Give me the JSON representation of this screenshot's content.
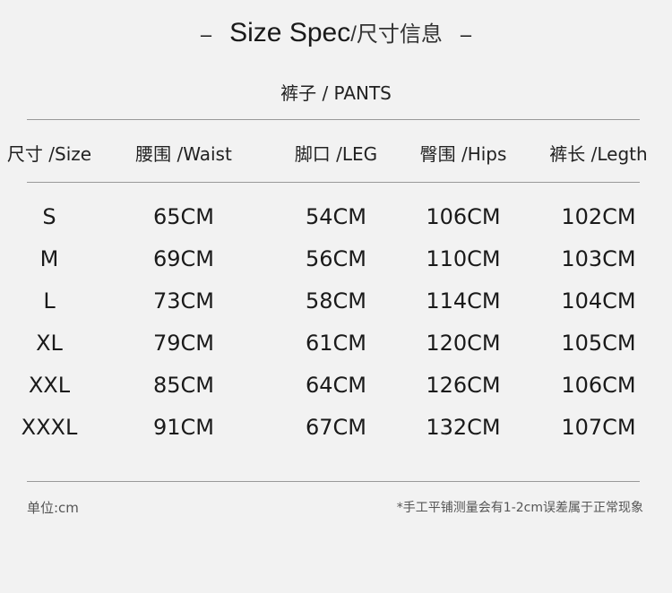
{
  "title": {
    "english": "Size Spec",
    "chinese": "/尺寸信息",
    "dash": "–"
  },
  "subtitle": "裤子 / PANTS",
  "table": {
    "headers": [
      "尺寸 /Size",
      "腰围 /Waist",
      "脚口 /LEG",
      "臀围 /Hips",
      "裤长 /Legth"
    ],
    "rows": [
      [
        "S",
        "65CM",
        "54CM",
        "106CM",
        "102CM"
      ],
      [
        "M",
        "69CM",
        "56CM",
        "110CM",
        "103CM"
      ],
      [
        "L",
        "73CM",
        "58CM",
        "114CM",
        "104CM"
      ],
      [
        "XL",
        "79CM",
        "61CM",
        "120CM",
        "105CM"
      ],
      [
        "XXL",
        "85CM",
        "64CM",
        "126CM",
        "106CM"
      ],
      [
        "XXXL",
        "91CM",
        "67CM",
        "132CM",
        "107CM"
      ]
    ]
  },
  "footer": {
    "unit": "单位:cm",
    "note": "*手工平铺测量会有1-2cm误差属于正常现象"
  }
}
